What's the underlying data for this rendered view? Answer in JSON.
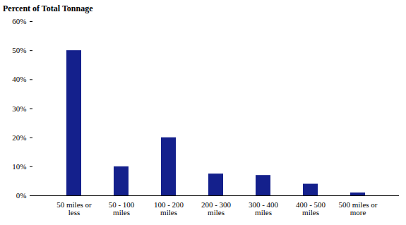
{
  "chart_data": {
    "type": "bar",
    "ylabel": "Percent of Total Tonnage",
    "categories": [
      "50 miles or less",
      "50 - 100 miles",
      "100 - 200 miles",
      "200 - 300 miles",
      "300 - 400 miles",
      "400 - 500 miles",
      "500 miles or more"
    ],
    "values": [
      50,
      10,
      20,
      7.5,
      7,
      4,
      1
    ],
    "color": "#14208c",
    "ylim": [
      0,
      60
    ],
    "yticks": [
      {
        "value": 0,
        "label": "0%"
      },
      {
        "value": 10,
        "label": "10%"
      },
      {
        "value": 20,
        "label": "20%"
      },
      {
        "value": 30,
        "label": "30%"
      },
      {
        "value": 40,
        "label": "40%"
      },
      {
        "value": 50,
        "label": "50%"
      },
      {
        "value": 60,
        "label": "60%"
      }
    ],
    "grid": false
  }
}
